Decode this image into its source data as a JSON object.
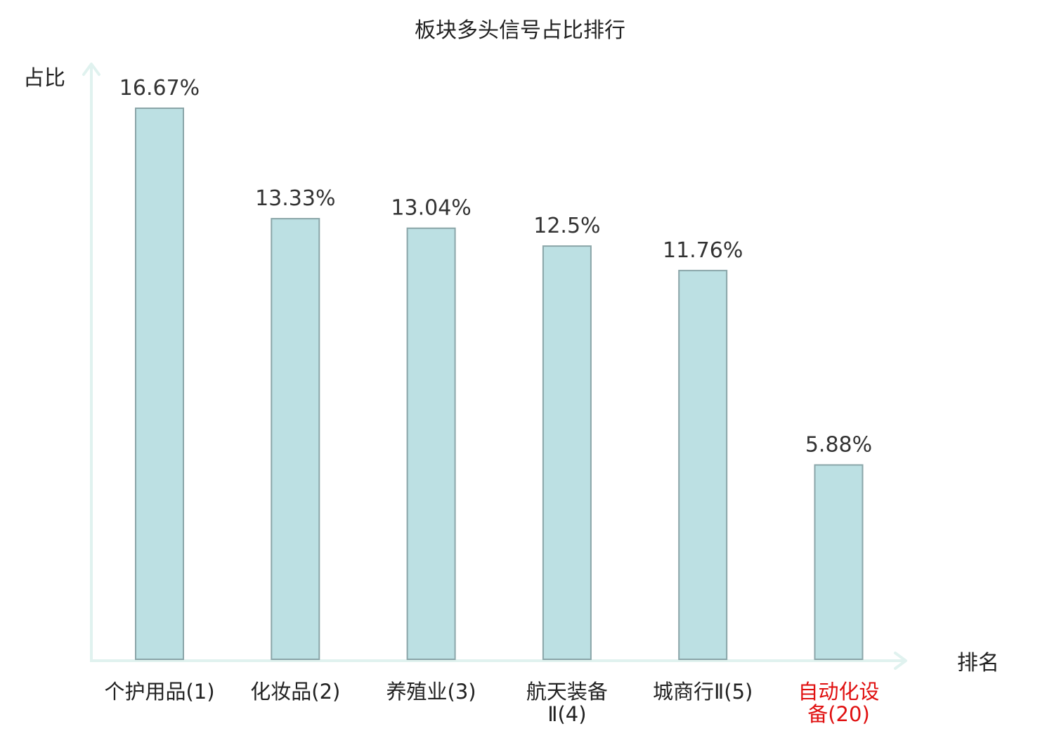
{
  "chart_data": {
    "type": "bar",
    "title": "板块多头信号占比排行",
    "ylabel": "占比",
    "xlabel": "排名",
    "categories": [
      [
        "个护用品(1)"
      ],
      [
        "化妆品(2)"
      ],
      [
        "养殖业(3)"
      ],
      [
        "航天装备",
        "Ⅱ(4)"
      ],
      [
        "城商行Ⅱ(5)"
      ],
      [
        "自动化设",
        "备(20)"
      ]
    ],
    "values": [
      16.67,
      13.33,
      13.04,
      12.5,
      11.76,
      5.88
    ],
    "value_labels": [
      "16.67%",
      "13.33%",
      "13.04%",
      "12.5%",
      "11.76%",
      "5.88%"
    ],
    "highlight_index": 5,
    "ylim": [
      0,
      16.67
    ],
    "grid": false,
    "colors": {
      "bar_fill": "#bce0e3",
      "bar_stroke": "#8aa5a8",
      "axis": "#e0f2ef",
      "text": "#222222",
      "value_text": "#333333",
      "highlight": "#e01010"
    }
  }
}
